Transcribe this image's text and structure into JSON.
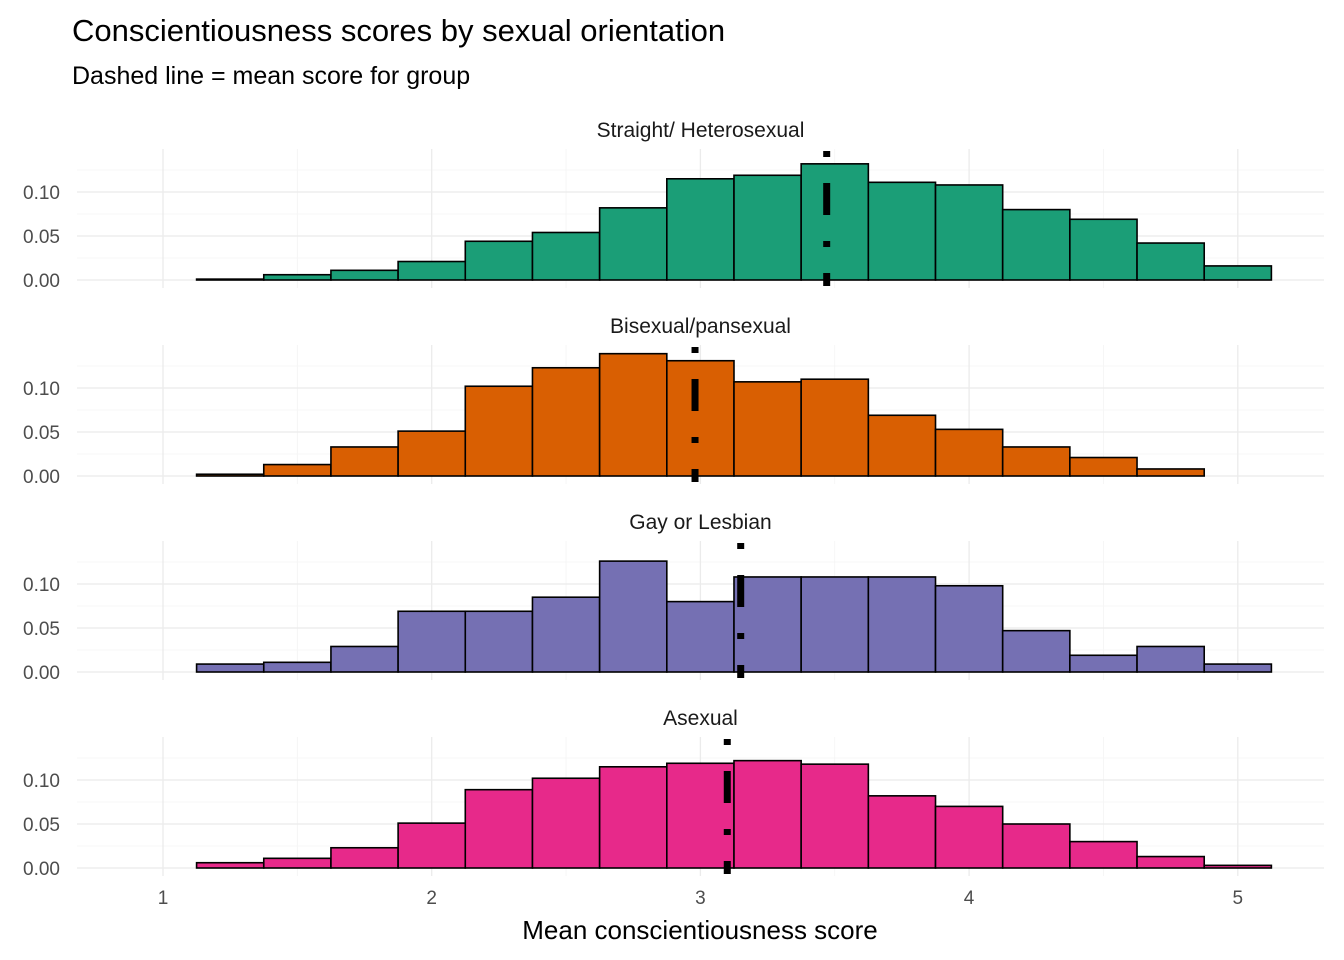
{
  "chart_data": {
    "type": "histogram",
    "title": "Conscientiousness scores by sexual orientation",
    "subtitle": "Dashed line = mean score for group",
    "xlabel": "Mean conscientiousness score",
    "ylabel": "",
    "xlim": [
      0.85,
      5.15
    ],
    "ylim": [
      0,
      0.14
    ],
    "xticks": [
      1,
      2,
      3,
      4,
      5
    ],
    "yticks": [
      0.0,
      0.05,
      0.1
    ],
    "ytick_labels": [
      "0.00",
      "0.05",
      "0.10"
    ],
    "grid": true,
    "bin_edges": [
      0.875,
      1.125,
      1.375,
      1.625,
      1.875,
      2.125,
      2.375,
      2.625,
      2.875,
      3.125,
      3.375,
      3.625,
      3.875,
      4.125,
      4.375,
      4.625,
      4.875,
      5.125
    ],
    "panels": [
      {
        "name": "Straight/ Heterosexual",
        "color": "#1B9E77",
        "mean": 3.47,
        "values": [
          0.0,
          0.001,
          0.006,
          0.011,
          0.021,
          0.044,
          0.054,
          0.082,
          0.115,
          0.119,
          0.132,
          0.111,
          0.108,
          0.08,
          0.069,
          0.042,
          0.016
        ]
      },
      {
        "name": "Bisexual/pansexual",
        "color": "#D95F02",
        "mean": 2.98,
        "values": [
          0.0,
          0.002,
          0.013,
          0.033,
          0.051,
          0.102,
          0.123,
          0.139,
          0.131,
          0.107,
          0.11,
          0.069,
          0.053,
          0.033,
          0.021,
          0.008,
          0.0
        ]
      },
      {
        "name": "Gay or Lesbian",
        "color": "#7570B3",
        "mean": 3.15,
        "values": [
          0.0,
          0.009,
          0.011,
          0.029,
          0.069,
          0.069,
          0.085,
          0.126,
          0.08,
          0.108,
          0.108,
          0.108,
          0.098,
          0.047,
          0.019,
          0.029,
          0.009
        ]
      },
      {
        "name": "Asexual",
        "color": "#E7298A",
        "mean": 3.1,
        "values": [
          0.0,
          0.006,
          0.011,
          0.023,
          0.051,
          0.089,
          0.102,
          0.115,
          0.119,
          0.122,
          0.118,
          0.082,
          0.07,
          0.05,
          0.03,
          0.013,
          0.003
        ]
      }
    ]
  }
}
